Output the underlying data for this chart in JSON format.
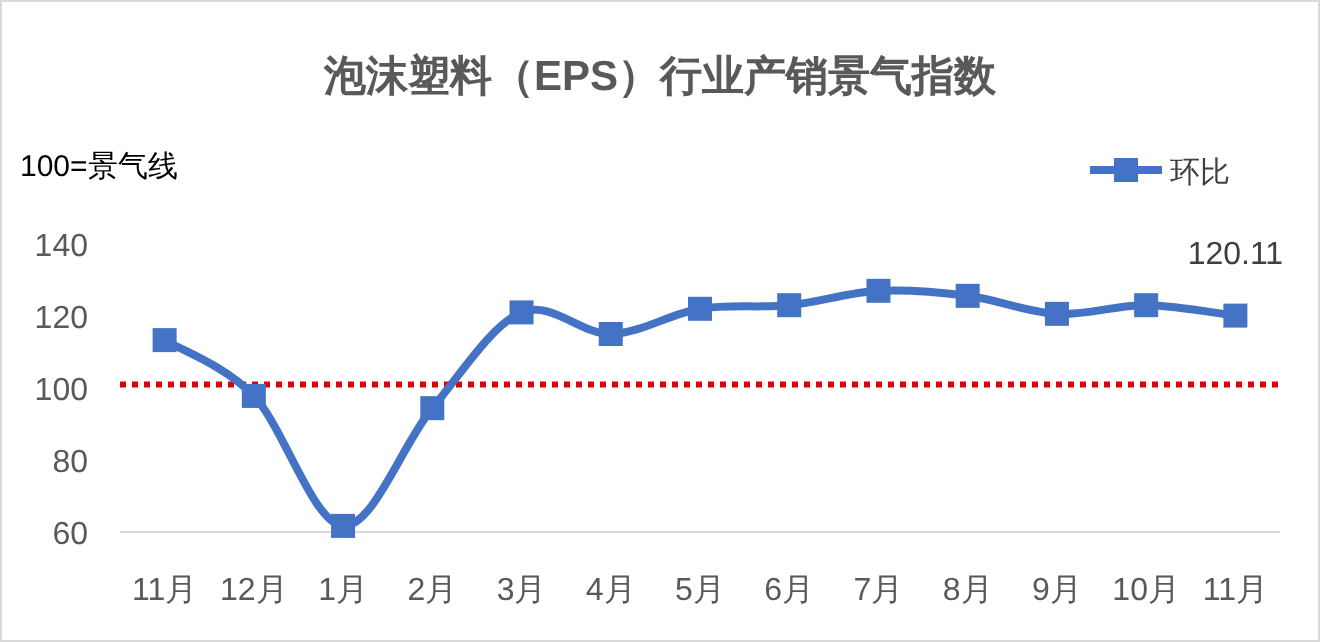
{
  "chart_data": {
    "type": "line",
    "title": "泡沫塑料（EPS）行业产销景气指数",
    "annotations": [
      "100=景气线"
    ],
    "categories": [
      "11月",
      "12月",
      "1月",
      "2月",
      "3月",
      "4月",
      "5月",
      "6月",
      "7月",
      "8月",
      "9月",
      "10月",
      "11月"
    ],
    "series": [
      {
        "name": "环比",
        "color": "#4472c4",
        "values": [
          113.3,
          97.8,
          61.7,
          94.4,
          121,
          115,
          122,
          123,
          127,
          125.6,
          120.6,
          123,
          120.11
        ],
        "value_labels": [
          null,
          null,
          null,
          null,
          null,
          null,
          null,
          null,
          null,
          null,
          null,
          null,
          "120.11"
        ]
      }
    ],
    "ylim": [
      60,
      140
    ],
    "yticks": [
      60,
      80,
      100,
      120,
      140
    ],
    "grid": false,
    "legend": "top right",
    "marker": "square",
    "line_style": "solid",
    "ref_lines": [
      {
        "axis": "y",
        "value": 101,
        "color": "#e00000",
        "line_style": "dotted"
      }
    ]
  }
}
